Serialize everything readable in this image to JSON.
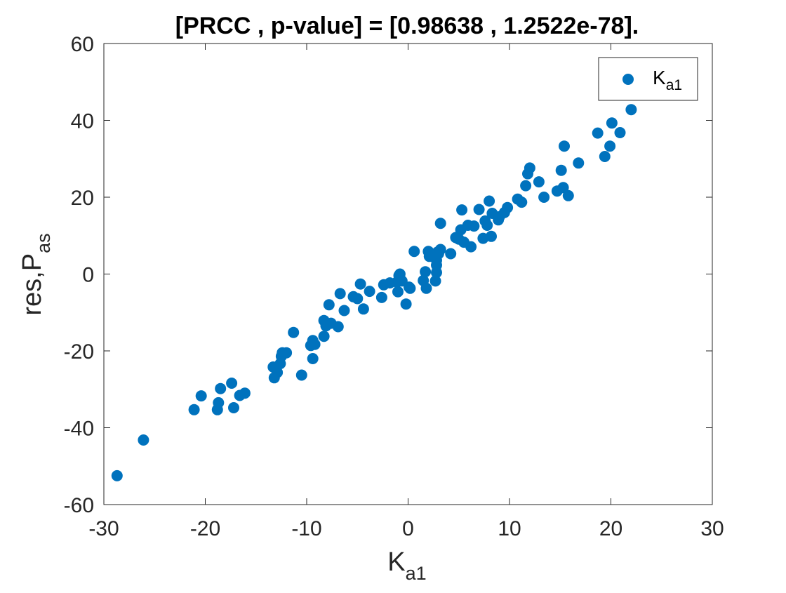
{
  "chart_data": {
    "type": "scatter",
    "title": "[PRCC , p-value] = [0.98638 , 1.2522e-78].",
    "xlabel": {
      "main": "K",
      "sub": "a1"
    },
    "ylabel": {
      "main": "res,P",
      "sub": "as"
    },
    "xlim": [
      -30,
      30
    ],
    "ylim": [
      -60,
      60
    ],
    "xticks": [
      -30,
      -20,
      -10,
      0,
      10,
      20,
      30
    ],
    "yticks": [
      -60,
      -40,
      -20,
      0,
      20,
      40,
      60
    ],
    "xtick_labels": [
      "-30",
      "-20",
      "-10",
      "0",
      "10",
      "20",
      "30"
    ],
    "ytick_labels": [
      "-60",
      "-40",
      "-20",
      "0",
      "20",
      "40",
      "60"
    ],
    "grid": false,
    "legend_position": "top-right",
    "marker_color": "#0072BD",
    "series": [
      {
        "name": {
          "main": "K",
          "sub": "a1"
        },
        "points": [
          [
            -28.7,
            -52.5
          ],
          [
            -26.1,
            -43.2
          ],
          [
            -21.1,
            -35.3
          ],
          [
            -20.4,
            -31.7
          ],
          [
            -18.8,
            -35.3
          ],
          [
            -18.7,
            -33.5
          ],
          [
            -18.5,
            -29.8
          ],
          [
            -17.4,
            -28.4
          ],
          [
            -17.2,
            -34.8
          ],
          [
            -16.6,
            -31.6
          ],
          [
            -16.1,
            -31.0
          ],
          [
            -13.3,
            -24.2
          ],
          [
            -13.2,
            -27.0
          ],
          [
            -12.9,
            -25.6
          ],
          [
            -12.6,
            -23.3
          ],
          [
            -12.5,
            -21.4
          ],
          [
            -12.4,
            -20.5
          ],
          [
            -12.0,
            -20.5
          ],
          [
            -11.3,
            -15.2
          ],
          [
            -10.5,
            -26.3
          ],
          [
            -9.6,
            -18.6
          ],
          [
            -9.4,
            -17.3
          ],
          [
            -9.4,
            -22.0
          ],
          [
            -9.2,
            -18.3
          ],
          [
            -8.3,
            -16.2
          ],
          [
            -8.3,
            -12.1
          ],
          [
            -8.1,
            -13.5
          ],
          [
            -7.8,
            -8.0
          ],
          [
            -7.6,
            -12.8
          ],
          [
            -6.9,
            -13.7
          ],
          [
            -6.7,
            -5.1
          ],
          [
            -6.3,
            -9.5
          ],
          [
            -5.4,
            -5.9
          ],
          [
            -5.0,
            -6.4
          ],
          [
            -4.7,
            -2.6
          ],
          [
            -4.4,
            -9.1
          ],
          [
            -3.8,
            -4.5
          ],
          [
            -2.6,
            -6.1
          ],
          [
            -2.4,
            -2.8
          ],
          [
            -1.8,
            -2.3
          ],
          [
            -1.1,
            -2.1
          ],
          [
            -1.0,
            -4.6
          ],
          [
            -0.9,
            -0.4
          ],
          [
            -0.8,
            0.0
          ],
          [
            -0.6,
            -1.8
          ],
          [
            -0.2,
            -7.8
          ],
          [
            0.1,
            -3.4
          ],
          [
            0.2,
            -3.7
          ],
          [
            0.6,
            5.9
          ],
          [
            1.5,
            -1.7
          ],
          [
            1.7,
            0.6
          ],
          [
            1.8,
            -3.7
          ],
          [
            2.0,
            5.9
          ],
          [
            2.1,
            4.6
          ],
          [
            2.7,
            -1.8
          ],
          [
            2.8,
            0.4
          ],
          [
            2.8,
            2.3
          ],
          [
            2.8,
            3.6
          ],
          [
            2.9,
            5.7
          ],
          [
            3.0,
            5.3
          ],
          [
            3.2,
            6.4
          ],
          [
            3.2,
            13.2
          ],
          [
            4.2,
            5.3
          ],
          [
            4.7,
            9.5
          ],
          [
            5.0,
            9.1
          ],
          [
            5.2,
            11.5
          ],
          [
            5.3,
            16.7
          ],
          [
            5.5,
            8.3
          ],
          [
            5.9,
            12.7
          ],
          [
            6.2,
            7.1
          ],
          [
            6.5,
            12.5
          ],
          [
            7.0,
            16.8
          ],
          [
            7.4,
            9.3
          ],
          [
            7.6,
            13.8
          ],
          [
            7.8,
            12.7
          ],
          [
            8.0,
            19.0
          ],
          [
            8.2,
            9.8
          ],
          [
            8.3,
            15.8
          ],
          [
            8.9,
            14.1
          ],
          [
            9.0,
            14.9
          ],
          [
            9.5,
            16.0
          ],
          [
            9.8,
            17.3
          ],
          [
            10.8,
            19.5
          ],
          [
            11.2,
            18.7
          ],
          [
            11.6,
            23.0
          ],
          [
            11.8,
            26.1
          ],
          [
            12.0,
            27.6
          ],
          [
            12.9,
            24.0
          ],
          [
            13.4,
            20.0
          ],
          [
            14.7,
            21.6
          ],
          [
            15.1,
            27.0
          ],
          [
            15.3,
            22.5
          ],
          [
            15.4,
            33.3
          ],
          [
            15.8,
            20.4
          ],
          [
            16.8,
            28.9
          ],
          [
            18.7,
            36.7
          ],
          [
            19.4,
            30.6
          ],
          [
            19.9,
            33.3
          ],
          [
            20.1,
            39.3
          ],
          [
            20.9,
            36.8
          ],
          [
            22.0,
            42.8
          ]
        ]
      }
    ]
  }
}
